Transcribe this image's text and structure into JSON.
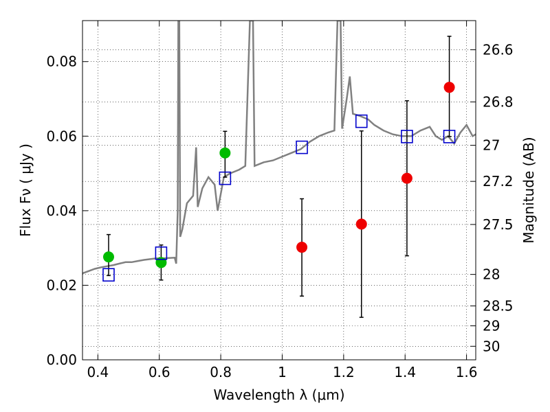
{
  "chart_data": {
    "type": "scatter",
    "xlabel": "Wavelength  λ (μm)",
    "ylabel": "Flux  Fν  ( μJy )",
    "y2label": "Magnitude (AB)",
    "xlim": [
      0.35,
      1.63
    ],
    "ylim": [
      0.0,
      0.091
    ],
    "grid": true,
    "x_ticks": [
      0.4,
      0.6,
      0.8,
      1.0,
      1.2,
      1.4,
      1.6
    ],
    "x_tick_labels": [
      "0.4",
      "0.6",
      "0.8",
      "1",
      "1.2",
      "1.4",
      "1.6"
    ],
    "y_ticks": [
      0.0,
      0.02,
      0.04,
      0.06,
      0.08
    ],
    "y_tick_labels": [
      "0.00",
      "0.02",
      "0.04",
      "0.06",
      "0.08"
    ],
    "mag_ticks": [
      26.6,
      26.8,
      27.0,
      27.2,
      27.5,
      28.0,
      28.5,
      29.0,
      30.0
    ],
    "mag_tick_labels": [
      "26.6",
      "26.8",
      "27",
      "27.2",
      "27.5",
      "28",
      "28.5",
      "29",
      "30"
    ],
    "series": [
      {
        "marker": "circle",
        "color": "#00bb00",
        "points": [
          {
            "x": 0.435,
            "y": 0.0276,
            "err_low": 0.0226,
            "err_high": 0.0336
          },
          {
            "x": 0.606,
            "y": 0.0261,
            "err_low": 0.0214,
            "err_high": 0.0308
          },
          {
            "x": 0.814,
            "y": 0.0555,
            "err_low": 0.049,
            "err_high": 0.0613
          }
        ]
      },
      {
        "marker": "circle",
        "color": "#ee0000",
        "points": [
          {
            "x": 1.064,
            "y": 0.0302,
            "err_low": 0.0171,
            "err_high": 0.0432
          },
          {
            "x": 1.258,
            "y": 0.0364,
            "err_low": 0.0114,
            "err_high": 0.0614
          },
          {
            "x": 1.406,
            "y": 0.0487,
            "err_low": 0.0279,
            "err_high": 0.0695
          },
          {
            "x": 1.544,
            "y": 0.0731,
            "err_low": 0.0599,
            "err_high": 0.0868
          }
        ]
      },
      {
        "marker": "square",
        "color": "#0000cc",
        "points": [
          {
            "x": 0.435,
            "y": 0.0228
          },
          {
            "x": 0.606,
            "y": 0.0286
          },
          {
            "x": 0.814,
            "y": 0.0487
          },
          {
            "x": 1.064,
            "y": 0.057
          },
          {
            "x": 1.258,
            "y": 0.064
          },
          {
            "x": 1.406,
            "y": 0.0599
          },
          {
            "x": 1.544,
            "y": 0.0599
          }
        ]
      }
    ],
    "spectrum": {
      "color": "#808080",
      "points": [
        [
          0.35,
          0.0232
        ],
        [
          0.37,
          0.0238
        ],
        [
          0.39,
          0.0244
        ],
        [
          0.41,
          0.0248
        ],
        [
          0.43,
          0.0251
        ],
        [
          0.45,
          0.0254
        ],
        [
          0.47,
          0.0258
        ],
        [
          0.49,
          0.0262
        ],
        [
          0.51,
          0.0262
        ],
        [
          0.53,
          0.0265
        ],
        [
          0.55,
          0.0268
        ],
        [
          0.57,
          0.027
        ],
        [
          0.59,
          0.0272
        ],
        [
          0.61,
          0.0272
        ],
        [
          0.63,
          0.0273
        ],
        [
          0.65,
          0.0274
        ],
        [
          0.655,
          0.0258
        ],
        [
          0.66,
          0.04
        ],
        [
          0.662,
          0.091
        ],
        [
          0.665,
          0.091
        ],
        [
          0.668,
          0.033
        ],
        [
          0.675,
          0.035
        ],
        [
          0.69,
          0.042
        ],
        [
          0.71,
          0.044
        ],
        [
          0.72,
          0.057
        ],
        [
          0.725,
          0.041
        ],
        [
          0.74,
          0.046
        ],
        [
          0.76,
          0.049
        ],
        [
          0.78,
          0.047
        ],
        [
          0.79,
          0.04
        ],
        [
          0.81,
          0.049
        ],
        [
          0.83,
          0.05
        ],
        [
          0.86,
          0.051
        ],
        [
          0.88,
          0.052
        ],
        [
          0.895,
          0.091
        ],
        [
          0.905,
          0.091
        ],
        [
          0.91,
          0.052
        ],
        [
          0.94,
          0.053
        ],
        [
          0.97,
          0.0535
        ],
        [
          1.0,
          0.0545
        ],
        [
          1.03,
          0.0555
        ],
        [
          1.06,
          0.0565
        ],
        [
          1.09,
          0.0585
        ],
        [
          1.12,
          0.06
        ],
        [
          1.15,
          0.061
        ],
        [
          1.17,
          0.0615
        ],
        [
          1.18,
          0.091
        ],
        [
          1.19,
          0.091
        ],
        [
          1.195,
          0.062
        ],
        [
          1.21,
          0.07
        ],
        [
          1.22,
          0.076
        ],
        [
          1.23,
          0.066
        ],
        [
          1.25,
          0.0655
        ],
        [
          1.28,
          0.0645
        ],
        [
          1.3,
          0.063
        ],
        [
          1.33,
          0.0615
        ],
        [
          1.36,
          0.0605
        ],
        [
          1.39,
          0.06
        ],
        [
          1.42,
          0.06
        ],
        [
          1.45,
          0.0615
        ],
        [
          1.48,
          0.0625
        ],
        [
          1.5,
          0.06
        ],
        [
          1.52,
          0.059
        ],
        [
          1.54,
          0.06
        ],
        [
          1.56,
          0.058
        ],
        [
          1.58,
          0.061
        ],
        [
          1.6,
          0.063
        ],
        [
          1.62,
          0.06
        ],
        [
          1.63,
          0.0605
        ]
      ]
    }
  }
}
